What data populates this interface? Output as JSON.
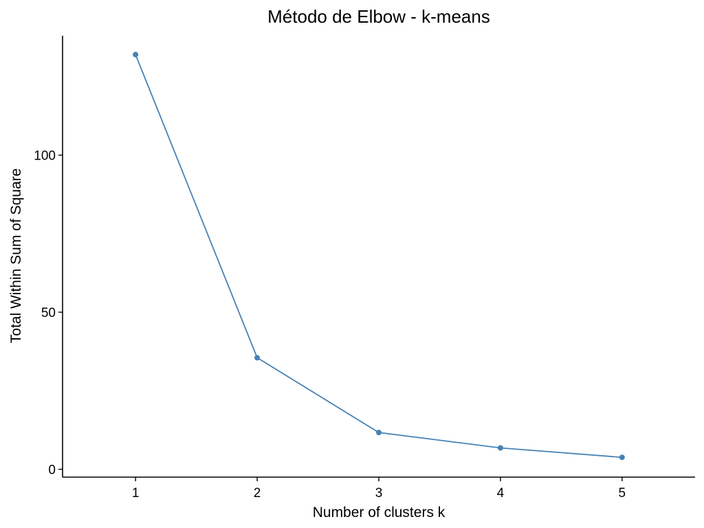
{
  "chart_data": {
    "type": "line",
    "title": "Método de Elbow - k-means",
    "xlabel": "Number of clusters k",
    "ylabel": "Total Within Sum of Square",
    "x": [
      1,
      2,
      3,
      4,
      5
    ],
    "x_tick_labels": [
      "1",
      "2",
      "3",
      "4",
      "5"
    ],
    "y_ticks": [
      0,
      50,
      100
    ],
    "y_tick_labels": [
      "0",
      "50",
      "100"
    ],
    "xlim": [
      0.4,
      5.6
    ],
    "ylim": [
      -2.5,
      138
    ],
    "series": [
      {
        "values": [
          132,
          35.5,
          11.7,
          6.8,
          3.8
        ],
        "color": "#4682B4"
      }
    ],
    "grid": false,
    "legend": "none"
  }
}
